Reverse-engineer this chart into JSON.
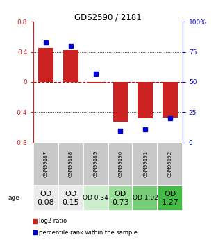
{
  "title": "GDS2590 / 2181",
  "samples": [
    "GSM99187",
    "GSM99188",
    "GSM99189",
    "GSM99190",
    "GSM99191",
    "GSM99192"
  ],
  "log2_ratios": [
    0.45,
    0.42,
    -0.02,
    -0.52,
    -0.48,
    -0.47
  ],
  "percentile_ranks": [
    83,
    80,
    57,
    10,
    11,
    20
  ],
  "bar_color": "#cc2222",
  "dot_color": "#0000cc",
  "ylim": [
    -0.8,
    0.8
  ],
  "yticks_left": [
    -0.8,
    -0.4,
    0,
    0.4,
    0.8
  ],
  "yticks_right": [
    0,
    25,
    50,
    75,
    100
  ],
  "ytick_labels_right": [
    "0",
    "25",
    "50",
    "75",
    "100%"
  ],
  "hline_color": "#cc0000",
  "dotted_color": "#333333",
  "od_values": [
    "OD\n0.08",
    "OD\n0.15",
    "OD 0.34",
    "OD\n0.73",
    "OD 1.02",
    "OD\n1.27"
  ],
  "od_colors": [
    "#ebebeb",
    "#ebebeb",
    "#cceecc",
    "#99dd99",
    "#77cc77",
    "#44bb44"
  ],
  "od_fontsize": [
    8,
    8,
    6.5,
    8,
    6.5,
    8
  ],
  "sample_bg": "#c8c8c8",
  "legend_log2": "log2 ratio",
  "legend_pct": "percentile rank within the sample"
}
